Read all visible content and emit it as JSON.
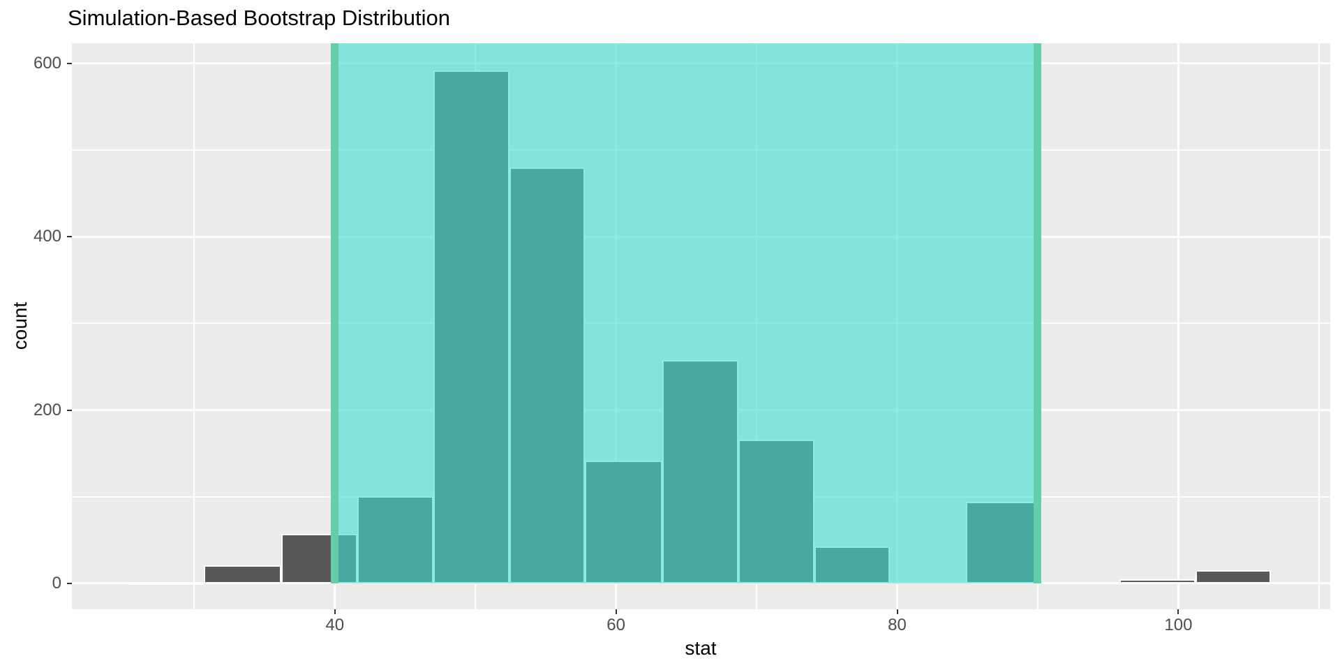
{
  "title": "Simulation-Based Bootstrap Distribution",
  "colors": {
    "background": "#FFFFFF",
    "panel_background": "#EBEBEB",
    "gridline": "#FFFFFF",
    "bar_fill": "#595959",
    "bar_stroke": "#FFFFFF",
    "shade_fill_rgba": "rgba(64,224,208,0.6)",
    "shade_over_panel_hex": "#84E4DA",
    "bar_under_shade_hex": "#4AAAA0",
    "ci_line": "#66CDAA",
    "tick_mark": "#333333",
    "tick_label": "#4D4D4D",
    "title_color": "#000000",
    "axis_title_color": "#000000"
  },
  "chart_data": {
    "type": "bar",
    "subtype": "histogram",
    "title": "Simulation-Based Bootstrap Distribution",
    "xlabel": "stat",
    "ylabel": "count",
    "legend": "none",
    "grid": "on",
    "x_axis": {
      "min": 21.3,
      "max": 110.8,
      "major_ticks": [
        40,
        60,
        80,
        100
      ],
      "minor_ticks": [
        30,
        50,
        70,
        90,
        110
      ]
    },
    "y_axis": {
      "min": -29.8,
      "max": 623.3,
      "major_ticks": [
        0,
        200,
        400,
        600
      ],
      "minor_ticks": [
        100,
        300,
        500
      ]
    },
    "ylim": [
      0,
      600
    ],
    "bins": [
      {
        "from": 25.3,
        "to": 30.7,
        "count": 2
      },
      {
        "from": 30.7,
        "to": 36.2,
        "count": 21
      },
      {
        "from": 36.2,
        "to": 41.6,
        "count": 57
      },
      {
        "from": 41.6,
        "to": 47.0,
        "count": 101
      },
      {
        "from": 47.0,
        "to": 52.4,
        "count": 592
      },
      {
        "from": 52.4,
        "to": 57.8,
        "count": 480
      },
      {
        "from": 57.8,
        "to": 63.3,
        "count": 142
      },
      {
        "from": 63.3,
        "to": 68.7,
        "count": 258
      },
      {
        "from": 68.7,
        "to": 74.1,
        "count": 166
      },
      {
        "from": 74.1,
        "to": 79.5,
        "count": 43
      },
      {
        "from": 79.5,
        "to": 84.9,
        "count": 0
      },
      {
        "from": 84.9,
        "to": 90.3,
        "count": 94
      },
      {
        "from": 90.3,
        "to": 95.8,
        "count": 0
      },
      {
        "from": 95.8,
        "to": 101.2,
        "count": 5
      },
      {
        "from": 101.2,
        "to": 106.6,
        "count": 15
      }
    ],
    "confidence_interval": {
      "lower": 40,
      "upper": 90
    }
  }
}
